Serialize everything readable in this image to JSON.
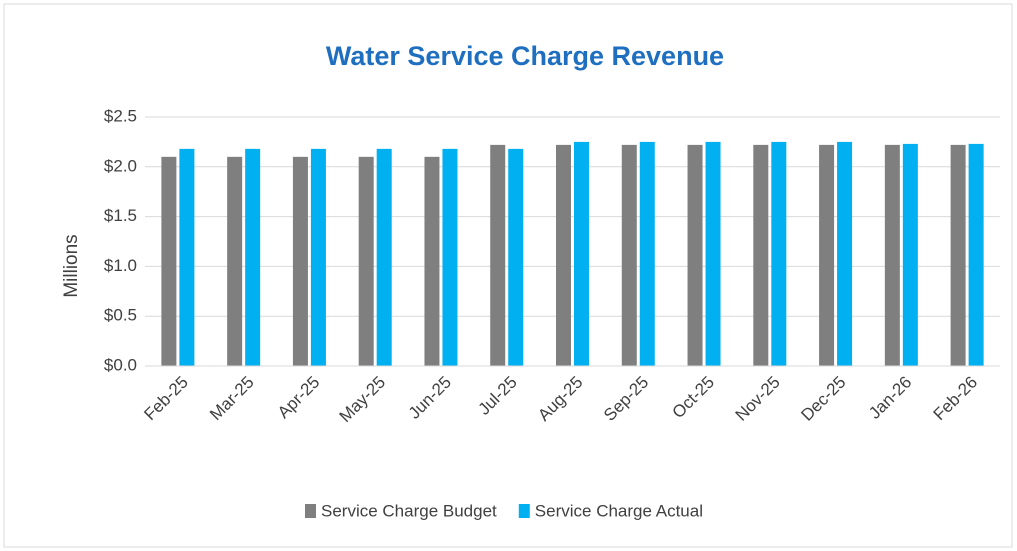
{
  "chart_data": {
    "type": "bar",
    "title": "Water Service Charge Revenue",
    "y_label": "Millions",
    "categories": [
      "Feb-25",
      "Mar-25",
      "Apr-25",
      "May-25",
      "Jun-25",
      "Jul-25",
      "Aug-25",
      "Sep-25",
      "Oct-25",
      "Nov-25",
      "Dec-25",
      "Jan-26",
      "Feb-26"
    ],
    "series": [
      {
        "name": "Service Charge Budget",
        "color": "#7f7f7f",
        "values": [
          2.1,
          2.1,
          2.1,
          2.1,
          2.1,
          2.22,
          2.22,
          2.22,
          2.22,
          2.22,
          2.22,
          2.22,
          2.22
        ]
      },
      {
        "name": "Service Charge Actual",
        "color": "#00b0f0",
        "values": [
          2.18,
          2.18,
          2.18,
          2.18,
          2.18,
          2.18,
          2.25,
          2.25,
          2.25,
          2.25,
          2.25,
          2.23,
          2.23
        ]
      }
    ],
    "ylim": [
      0,
      2.5
    ],
    "yticks": [
      {
        "value": 0,
        "label": "$0.0"
      },
      {
        "value": 0.5,
        "label": "$0.5"
      },
      {
        "value": 1,
        "label": "$1.0"
      },
      {
        "value": 1.5,
        "label": "$1.5"
      },
      {
        "value": 2,
        "label": "$2.0"
      },
      {
        "value": 2.5,
        "label": "$2.5"
      }
    ],
    "grid": true,
    "legend": "bottom"
  }
}
